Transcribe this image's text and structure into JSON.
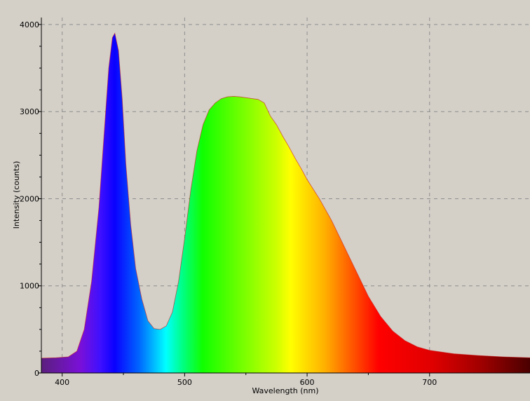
{
  "chart_data": {
    "type": "area",
    "title": "",
    "xlabel": "Wavelength (nm)",
    "ylabel": "Intensity (counts)",
    "xlim": [
      383,
      782
    ],
    "ylim": [
      0,
      4080
    ],
    "x_ticks": [
      400,
      500,
      600,
      700
    ],
    "y_ticks": [
      0,
      1000,
      2000,
      3000,
      4000
    ],
    "grid": true,
    "fill": "visible-spectrum gradient",
    "series": [
      {
        "x": [
          383,
          395,
          405,
          412,
          418,
          424,
          430,
          435,
          438,
          441,
          443,
          446,
          449,
          452,
          456,
          460,
          465,
          470,
          475,
          480,
          485,
          490,
          495,
          500,
          505,
          510,
          515,
          520,
          525,
          530,
          535,
          540,
          545,
          550,
          555,
          560,
          565,
          570,
          575,
          580,
          585,
          590,
          595,
          600,
          610,
          620,
          630,
          640,
          650,
          660,
          670,
          680,
          690,
          700,
          720,
          740,
          760,
          782
        ],
        "y": [
          170,
          175,
          185,
          250,
          500,
          1050,
          1900,
          2900,
          3500,
          3850,
          3900,
          3700,
          3150,
          2400,
          1700,
          1200,
          850,
          600,
          510,
          500,
          540,
          700,
          1050,
          1550,
          2100,
          2550,
          2850,
          3020,
          3100,
          3150,
          3170,
          3175,
          3170,
          3160,
          3150,
          3140,
          3100,
          2950,
          2850,
          2720,
          2600,
          2470,
          2350,
          2220,
          2000,
          1750,
          1460,
          1170,
          880,
          650,
          480,
          370,
          300,
          260,
          220,
          200,
          185,
          175
        ]
      }
    ]
  }
}
